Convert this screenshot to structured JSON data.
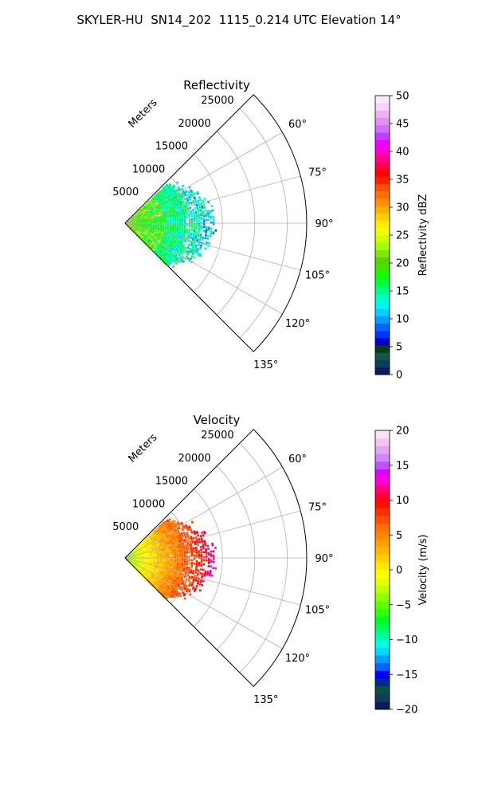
{
  "figure": {
    "title": "SKYLER-HU  SN14_202  1115_0.214 UTC Elevation 14°"
  },
  "chart_data": [
    {
      "type": "heatmap",
      "projection": "polar-sector",
      "title": "Reflectivity",
      "radial_label": "Meters",
      "radial_ticks": [
        5000,
        10000,
        15000,
        20000,
        25000
      ],
      "radial_range": [
        0,
        28000
      ],
      "angle_range_deg": [
        45,
        135
      ],
      "angle_ticks": [
        {
          "deg": 60,
          "label": "60°"
        },
        {
          "deg": 75,
          "label": "75°"
        },
        {
          "deg": 90,
          "label": "90°"
        },
        {
          "deg": 105,
          "label": "105°"
        },
        {
          "deg": 120,
          "label": "120°"
        },
        {
          "deg": 135,
          "label": "135°"
        }
      ],
      "grid": true,
      "data_extent_m": [
        0,
        13500
      ],
      "colorbar": {
        "label": "Reflectivity dBZ",
        "range": [
          0,
          50
        ],
        "ticks": [
          "0",
          "5",
          "10",
          "15",
          "20",
          "25",
          "30",
          "35",
          "40",
          "45",
          "50"
        ],
        "colors": [
          "#0a1a5e",
          "#0f3c5c",
          "#0d5a48",
          "#0a3a20",
          "#0000c8",
          "#0033ff",
          "#0066ff",
          "#009fff",
          "#00cfff",
          "#00f5f0",
          "#00ffc0",
          "#00ff80",
          "#00ff40",
          "#10ff00",
          "#40e600",
          "#59d400",
          "#80e600",
          "#a0ff00",
          "#ccff00",
          "#f0ff00",
          "#ffee00",
          "#ffd000",
          "#ffb000",
          "#ff9000",
          "#ff7000",
          "#ff5000",
          "#ff2000",
          "#ff0000",
          "#ff004a",
          "#ff0090",
          "#ff00d4",
          "#ef00ff",
          "#c040ff",
          "#d070ff",
          "#e090f0",
          "#f0b0f0",
          "#f8d4f8",
          "#fde8fd"
        ]
      }
    },
    {
      "type": "heatmap",
      "projection": "polar-sector",
      "title": "Velocity",
      "radial_label": "Meters",
      "radial_ticks": [
        5000,
        10000,
        15000,
        20000,
        25000
      ],
      "radial_range": [
        0,
        28000
      ],
      "angle_range_deg": [
        45,
        135
      ],
      "angle_ticks": [
        {
          "deg": 60,
          "label": "60°"
        },
        {
          "deg": 75,
          "label": "75°"
        },
        {
          "deg": 90,
          "label": "90°"
        },
        {
          "deg": 105,
          "label": "105°"
        },
        {
          "deg": 120,
          "label": "120°"
        },
        {
          "deg": 135,
          "label": "135°"
        }
      ],
      "grid": true,
      "data_extent_m": [
        0,
        13500
      ],
      "colorbar": {
        "label": "Velocity (m/s)",
        "range": [
          -20,
          20
        ],
        "ticks": [
          "−20",
          "−15",
          "−10",
          "−5",
          "0",
          "5",
          "10",
          "15",
          "20"
        ],
        "colors": [
          "#0a1a5e",
          "#0f3c5c",
          "#0a5040",
          "#002d8c",
          "#0000ff",
          "#0066ff",
          "#00a0ff",
          "#00d8ff",
          "#00ffe0",
          "#00ffa0",
          "#00ff60",
          "#00ff20",
          "#30ff00",
          "#60ff00",
          "#90ff00",
          "#c0ff00",
          "#e8ff00",
          "#ffff00",
          "#ffe800",
          "#ffd000",
          "#ffb800",
          "#ffa000",
          "#ff8800",
          "#ff7000",
          "#ff5000",
          "#ff3000",
          "#ff1000",
          "#ff0030",
          "#ff0080",
          "#ff00d0",
          "#e000ff",
          "#c050ff",
          "#d088ff",
          "#e0a8f0",
          "#f0c8f0",
          "#f8e0f8"
        ]
      }
    }
  ]
}
